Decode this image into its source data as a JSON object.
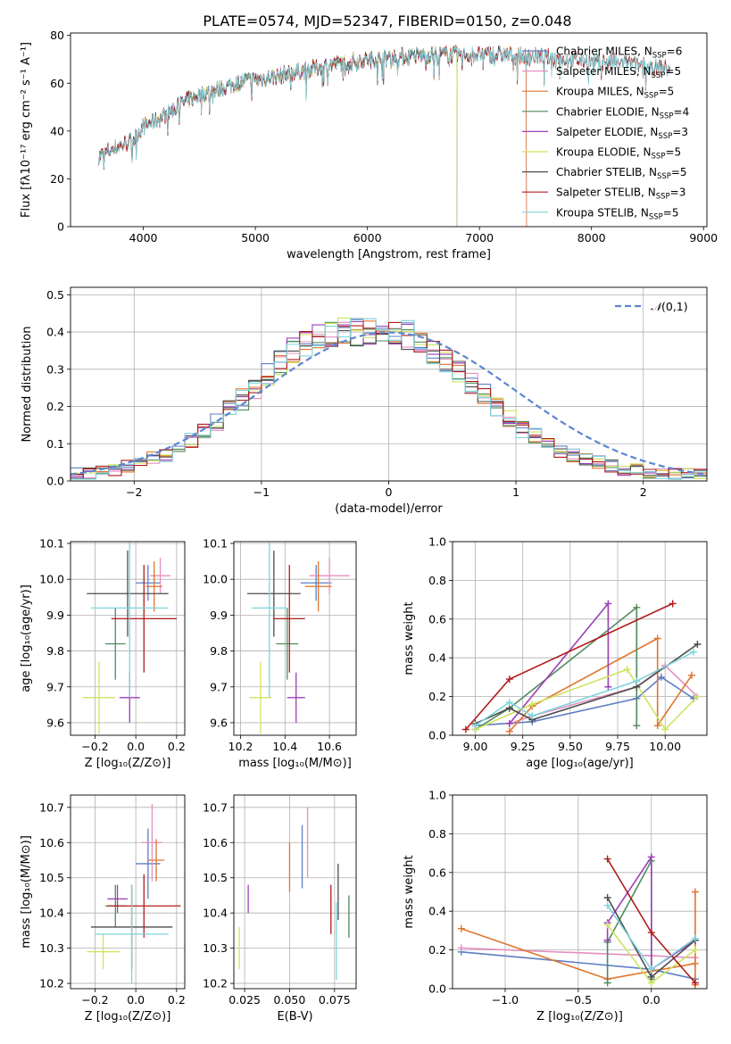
{
  "figure": {
    "title": "PLATE=0574, MJD=52347, FIBERID=0150, z=0.048"
  },
  "colors": {
    "Chabrier MILES": "#5d7ec4",
    "Salpeter MILES": "#e58fbf",
    "Kroupa MILES": "#e0752e",
    "Chabrier ELODIE": "#4f8a5e",
    "Salpeter ELODIE": "#9b3fb5",
    "Kroupa ELODIE": "#cfe35f",
    "Chabrier STELIB": "#4d4d4d",
    "Salpeter STELIB": "#b01c1c",
    "Kroupa STELIB": "#7fd4dc",
    "normal": "#5b86cf"
  },
  "chart_data": [
    {
      "id": "spectrum",
      "type": "line",
      "xlabel": "wavelength [Angstrom, rest frame]",
      "ylabel": "Flux [fλ10⁻¹⁷ erg cm⁻² s⁻¹ A⁻¹]",
      "xlim": [
        3350,
        9030
      ],
      "ylim": [
        0,
        81
      ],
      "xticks": [
        4000,
        5000,
        6000,
        7000,
        8000,
        9000
      ],
      "yticks": [
        0,
        20,
        40,
        60,
        80
      ],
      "legend_position": "top-right",
      "continuum": {
        "x": [
          3600,
          3700,
          3800,
          3900,
          4000,
          4100,
          4200,
          4300,
          4400,
          4500,
          4700,
          4900,
          5100,
          5300,
          5500,
          5700,
          6000,
          6300,
          6600,
          6900,
          7200,
          7500,
          7800,
          8100,
          8400,
          8700
        ],
        "y": [
          29,
          32,
          34,
          36,
          42,
          44,
          47,
          50,
          53,
          55,
          58,
          61,
          62,
          64,
          66,
          68,
          70,
          71,
          72,
          72,
          72,
          71,
          70,
          69,
          68,
          66
        ]
      },
      "series": [
        {
          "label": "Chabrier MILES, N",
          "sub": "SSP",
          "n": "=6",
          "x_end": 7420
        },
        {
          "label": "Salpeter MILES, N",
          "sub": "SSP",
          "n": "=5",
          "x_end": 7420
        },
        {
          "label": "Kroupa MILES, N",
          "sub": "SSP",
          "n": "=5",
          "x_end": 7420
        },
        {
          "label": "Chabrier ELODIE, N",
          "sub": "SSP",
          "n": "=4",
          "x_end": 6800
        },
        {
          "label": "Salpeter ELODIE, N",
          "sub": "SSP",
          "n": "=3",
          "x_end": 6800
        },
        {
          "label": "Kroupa ELODIE, N",
          "sub": "SSP",
          "n": "=5",
          "x_end": 6800
        },
        {
          "label": "Chabrier STELIB, N",
          "sub": "SSP",
          "n": "=5",
          "x_end": 8700
        },
        {
          "label": "Salpeter STELIB, N",
          "sub": "SSP",
          "n": "=3",
          "x_end": 8700
        },
        {
          "label": "Kroupa STELIB, N",
          "sub": "SSP",
          "n": "=5",
          "x_end": 8700
        }
      ]
    },
    {
      "id": "residuals",
      "type": "histogram",
      "xlabel": "(data-model)/error",
      "ylabel": "Normed distribution",
      "xlim": [
        -2.5,
        2.5
      ],
      "ylim": [
        0,
        0.52
      ],
      "xticks": [
        -2,
        -1,
        0,
        1,
        2
      ],
      "yticks": [
        0.0,
        0.1,
        0.2,
        0.3,
        0.4,
        0.5
      ],
      "bin_width": 0.1,
      "grid": true,
      "legend": {
        "label": "N(0,1)",
        "position": "top-right"
      },
      "envelope": [
        0.02,
        0.02,
        0.03,
        0.03,
        0.04,
        0.05,
        0.06,
        0.07,
        0.09,
        0.11,
        0.13,
        0.16,
        0.19,
        0.22,
        0.25,
        0.29,
        0.32,
        0.35,
        0.37,
        0.39,
        0.4,
        0.4,
        0.4,
        0.41,
        0.41,
        0.4,
        0.39,
        0.37,
        0.35,
        0.33,
        0.3,
        0.26,
        0.23,
        0.2,
        0.17,
        0.14,
        0.12,
        0.1,
        0.08,
        0.07,
        0.06,
        0.05,
        0.04,
        0.03,
        0.03,
        0.02,
        0.02,
        0.02,
        0.02,
        0.02
      ]
    },
    {
      "id": "age-vs-Z",
      "type": "errorbar",
      "xlabel": "Z [log₁₀(Z/Z⊙)]",
      "ylabel": "age  [log₁₀(age/yr)]",
      "xlim": [
        -0.32,
        0.24
      ],
      "ylim": [
        9.565,
        10.105
      ],
      "xticks": [
        -0.2,
        0.0,
        0.2
      ],
      "yticks": [
        9.6,
        9.7,
        9.8,
        9.9,
        10.0,
        10.1
      ],
      "points": [
        {
          "model": "Chabrier MILES",
          "x": 0.06,
          "xerr": 0.06,
          "y": 9.99,
          "yerr": 0.05
        },
        {
          "model": "Salpeter MILES",
          "x": 0.12,
          "xerr": 0.05,
          "y": 10.01,
          "yerr": 0.05
        },
        {
          "model": "Kroupa MILES",
          "x": 0.09,
          "xerr": 0.04,
          "y": 9.98,
          "yerr": 0.07
        },
        {
          "model": "Chabrier ELODIE",
          "x": -0.1,
          "xerr": 0.05,
          "y": 9.82,
          "yerr": 0.1
        },
        {
          "model": "Salpeter ELODIE",
          "x": -0.03,
          "xerr": 0.05,
          "y": 9.67,
          "yerr": 0.07
        },
        {
          "model": "Kroupa ELODIE",
          "x": -0.18,
          "xerr": 0.08,
          "y": 9.67,
          "yerr": 0.1
        },
        {
          "model": "Chabrier STELIB",
          "x": -0.04,
          "xerr": 0.2,
          "y": 9.96,
          "yerr": 0.12
        },
        {
          "model": "Salpeter STELIB",
          "x": 0.04,
          "xerr": 0.16,
          "y": 9.89,
          "yerr": 0.15
        },
        {
          "model": "Kroupa STELIB",
          "x": -0.03,
          "xerr": 0.19,
          "y": 9.92,
          "yerr": 0.25
        }
      ]
    },
    {
      "id": "age-vs-mass",
      "type": "errorbar",
      "xlabel": "mass [log₁₀(M/M⊙)]",
      "xlim": [
        10.17,
        10.72
      ],
      "ylim": [
        9.565,
        10.105
      ],
      "xticks": [
        10.2,
        10.4,
        10.6
      ],
      "yticks": [
        9.6,
        9.7,
        9.8,
        9.9,
        10.0,
        10.1
      ],
      "points": [
        {
          "model": "Chabrier MILES",
          "x": 10.54,
          "xerr": 0.07,
          "y": 9.99,
          "yerr": 0.05
        },
        {
          "model": "Salpeter MILES",
          "x": 10.6,
          "xerr": 0.09,
          "y": 10.01,
          "yerr": 0.05
        },
        {
          "model": "Kroupa MILES",
          "x": 10.55,
          "xerr": 0.06,
          "y": 9.98,
          "yerr": 0.07
        },
        {
          "model": "Chabrier ELODIE",
          "x": 10.41,
          "xerr": 0.05,
          "y": 9.82,
          "yerr": 0.1
        },
        {
          "model": "Salpeter ELODIE",
          "x": 10.45,
          "xerr": 0.04,
          "y": 9.67,
          "yerr": 0.07
        },
        {
          "model": "Kroupa ELODIE",
          "x": 10.29,
          "xerr": 0.05,
          "y": 9.67,
          "yerr": 0.1
        },
        {
          "model": "Chabrier STELIB",
          "x": 10.35,
          "xerr": 0.12,
          "y": 9.96,
          "yerr": 0.12
        },
        {
          "model": "Salpeter STELIB",
          "x": 10.42,
          "xerr": 0.07,
          "y": 9.89,
          "yerr": 0.15
        },
        {
          "model": "Kroupa STELIB",
          "x": 10.33,
          "xerr": 0.08,
          "y": 9.92,
          "yerr": 0.25
        }
      ]
    },
    {
      "id": "weight-vs-age",
      "type": "line",
      "xlabel": "age  [log₁₀(age/yr)]",
      "ylabel": "mass weight",
      "xlim": [
        8.88,
        10.22
      ],
      "ylim": [
        0,
        1.0
      ],
      "xticks": [
        9.0,
        9.25,
        9.5,
        9.75,
        10.0
      ],
      "yticks": [
        0.0,
        0.2,
        0.4,
        0.6,
        0.8,
        1.0
      ],
      "grid": true,
      "series": [
        {
          "model": "Chabrier MILES",
          "x": [
            9.0,
            9.3,
            9.85,
            9.98,
            10.15
          ],
          "y": [
            0.05,
            0.07,
            0.19,
            0.3,
            0.19
          ]
        },
        {
          "model": "Salpeter MILES",
          "x": [
            9.18,
            9.3,
            9.85,
            10.0,
            10.17
          ],
          "y": [
            0.06,
            0.1,
            0.25,
            0.36,
            0.2
          ]
        },
        {
          "model": "Kroupa MILES",
          "x": [
            9.18,
            9.3,
            9.96,
            9.96,
            10.14
          ],
          "y": [
            0.02,
            0.15,
            0.5,
            0.05,
            0.31
          ]
        },
        {
          "model": "Chabrier ELODIE",
          "x": [
            9.0,
            9.18,
            9.85,
            9.85
          ],
          "y": [
            0.03,
            0.14,
            0.66,
            0.05
          ]
        },
        {
          "model": "Salpeter ELODIE",
          "x": [
            9.18,
            9.7,
            9.7
          ],
          "y": [
            0.06,
            0.68,
            0.25
          ]
        },
        {
          "model": "Kroupa ELODIE",
          "x": [
            9.0,
            9.3,
            9.8,
            10.0,
            10.17
          ],
          "y": [
            0.03,
            0.16,
            0.34,
            0.03,
            0.2
          ]
        },
        {
          "model": "Chabrier STELIB",
          "x": [
            9.0,
            9.18,
            9.3,
            9.85,
            10.17
          ],
          "y": [
            0.06,
            0.14,
            0.08,
            0.25,
            0.47
          ]
        },
        {
          "model": "Salpeter STELIB",
          "x": [
            8.95,
            9.18,
            10.04
          ],
          "y": [
            0.03,
            0.29,
            0.68
          ]
        },
        {
          "model": "Kroupa STELIB",
          "x": [
            9.0,
            9.18,
            9.3,
            9.85,
            10.15
          ],
          "y": [
            0.05,
            0.17,
            0.1,
            0.28,
            0.43
          ]
        }
      ]
    },
    {
      "id": "mass-vs-Z",
      "type": "errorbar",
      "xlabel": "Z [log₁₀(Z/Z⊙)]",
      "ylabel": "mass [log₁₀(M/M⊙)]",
      "xlim": [
        -0.32,
        0.24
      ],
      "ylim": [
        10.185,
        10.735
      ],
      "xticks": [
        -0.2,
        0.0,
        0.2
      ],
      "yticks": [
        10.2,
        10.3,
        10.4,
        10.5,
        10.6,
        10.7
      ],
      "points": [
        {
          "model": "Chabrier MILES",
          "x": 0.06,
          "xerr": 0.06,
          "y": 10.54,
          "yerr": 0.1
        },
        {
          "model": "Salpeter MILES",
          "x": 0.08,
          "xerr": 0.05,
          "y": 10.6,
          "yerr": 0.11
        },
        {
          "model": "Kroupa MILES",
          "x": 0.1,
          "xerr": 0.04,
          "y": 10.55,
          "yerr": 0.06
        },
        {
          "model": "Chabrier ELODIE",
          "x": -0.1,
          "xerr": 0.05,
          "y": 10.42,
          "yerr": 0.06
        },
        {
          "model": "Salpeter ELODIE",
          "x": -0.09,
          "xerr": 0.05,
          "y": 10.44,
          "yerr": 0.04
        },
        {
          "model": "Kroupa ELODIE",
          "x": -0.16,
          "xerr": 0.08,
          "y": 10.29,
          "yerr": 0.05
        },
        {
          "model": "Chabrier STELIB",
          "x": -0.02,
          "xerr": 0.2,
          "y": 10.36,
          "yerr": 0.12
        },
        {
          "model": "Salpeter STELIB",
          "x": 0.04,
          "xerr": 0.18,
          "y": 10.42,
          "yerr": 0.09
        },
        {
          "model": "Kroupa STELIB",
          "x": -0.02,
          "xerr": 0.18,
          "y": 10.34,
          "yerr": 0.14
        }
      ]
    },
    {
      "id": "mass-vs-EBV",
      "type": "errorbar",
      "xlabel": "E(B-V)",
      "xlim": [
        0.019,
        0.087
      ],
      "ylim": [
        10.185,
        10.735
      ],
      "xticks": [
        0.025,
        0.05,
        0.075
      ],
      "yticks": [
        10.2,
        10.3,
        10.4,
        10.5,
        10.6,
        10.7
      ],
      "points": [
        {
          "model": "Chabrier MILES",
          "x": 0.057,
          "xerr": 0,
          "y": 10.56,
          "yerr": 0.09
        },
        {
          "model": "Salpeter MILES",
          "x": 0.06,
          "xerr": 0,
          "y": 10.6,
          "yerr": 0.1
        },
        {
          "model": "Kroupa MILES",
          "x": 0.05,
          "xerr": 0,
          "y": 10.53,
          "yerr": 0.07
        },
        {
          "model": "Chabrier ELODIE",
          "x": 0.083,
          "xerr": 0,
          "y": 10.39,
          "yerr": 0.06
        },
        {
          "model": "Salpeter ELODIE",
          "x": 0.027,
          "xerr": 0,
          "y": 10.44,
          "yerr": 0.04
        },
        {
          "model": "Kroupa ELODIE",
          "x": 0.022,
          "xerr": 0,
          "y": 10.3,
          "yerr": 0.06
        },
        {
          "model": "Chabrier STELIB",
          "x": 0.077,
          "xerr": 0,
          "y": 10.46,
          "yerr": 0.08
        },
        {
          "model": "Salpeter STELIB",
          "x": 0.073,
          "xerr": 0,
          "y": 10.41,
          "yerr": 0.07
        },
        {
          "model": "Kroupa STELIB",
          "x": 0.076,
          "xerr": 0,
          "y": 10.32,
          "yerr": 0.11
        }
      ]
    },
    {
      "id": "weight-vs-Z",
      "type": "line",
      "xlabel": "Z [log₁₀(Z/Z⊙)]",
      "ylabel": "mass weight",
      "xlim": [
        -1.36,
        0.38
      ],
      "ylim": [
        0,
        1.0
      ],
      "xticks": [
        -1.0,
        -0.5,
        0.0
      ],
      "yticks": [
        0.0,
        0.2,
        0.4,
        0.6,
        0.8,
        1.0
      ],
      "grid": true,
      "series": [
        {
          "model": "Chabrier MILES",
          "x": [
            -1.3,
            0.0,
            0.3
          ],
          "y": [
            0.19,
            0.1,
            0.05
          ]
        },
        {
          "model": "Salpeter MILES",
          "x": [
            -1.3,
            0.0,
            0.3
          ],
          "y": [
            0.21,
            0.17,
            0.16
          ]
        },
        {
          "model": "Kroupa MILES",
          "x": [
            -1.3,
            -0.3,
            0.3,
            0.3,
            0.3
          ],
          "y": [
            0.31,
            0.05,
            0.13,
            0.5,
            0.02
          ]
        },
        {
          "model": "Chabrier ELODIE",
          "x": [
            -0.3,
            -0.3,
            0.0,
            0.0
          ],
          "y": [
            0.03,
            0.24,
            0.66,
            0.05
          ]
        },
        {
          "model": "Salpeter ELODIE",
          "x": [
            -0.3,
            -0.3,
            0.0,
            0.0,
            0.3
          ],
          "y": [
            0.25,
            0.34,
            0.68,
            0.1,
            0.25
          ]
        },
        {
          "model": "Kroupa ELODIE",
          "x": [
            -0.3,
            0.0,
            0.3
          ],
          "y": [
            0.33,
            0.03,
            0.2
          ]
        },
        {
          "model": "Chabrier STELIB",
          "x": [
            -0.3,
            0.0,
            0.3
          ],
          "y": [
            0.47,
            0.06,
            0.25
          ]
        },
        {
          "model": "Salpeter STELIB",
          "x": [
            -0.3,
            0.0,
            0.3
          ],
          "y": [
            0.67,
            0.29,
            0.03
          ]
        },
        {
          "model": "Kroupa STELIB",
          "x": [
            -0.3,
            0.0,
            0.3
          ],
          "y": [
            0.43,
            0.1,
            0.26
          ]
        }
      ]
    }
  ]
}
